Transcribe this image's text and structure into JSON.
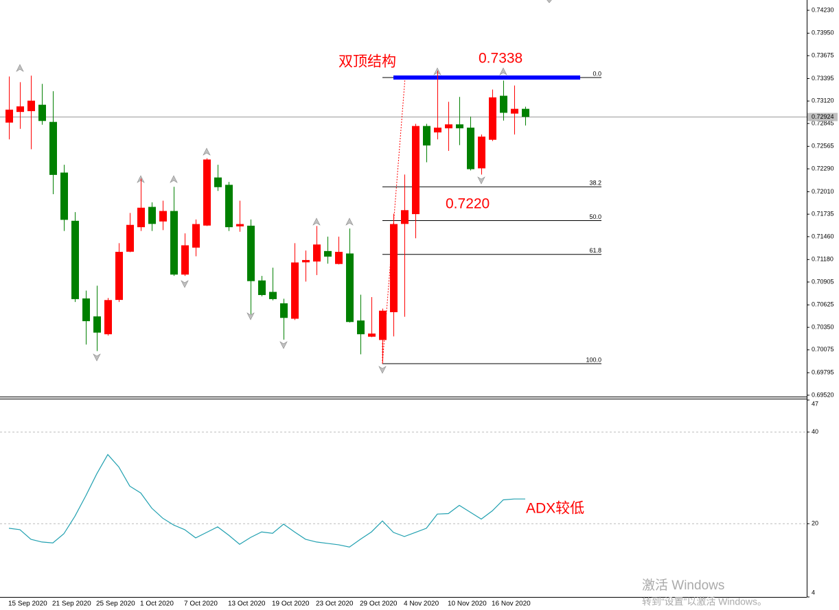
{
  "chart_data": {
    "type": "candlestick",
    "categories": [
      "15 Sep 2020",
      null,
      null,
      null,
      "21 Sep 2020",
      null,
      null,
      null,
      "25 Sep 2020",
      null,
      null,
      null,
      "1 Oct 2020",
      null,
      null,
      null,
      "7 Oct 2020",
      null,
      null,
      null,
      "13 Oct 2020",
      null,
      null,
      null,
      "19 Oct 2020",
      null,
      null,
      null,
      "23 Oct 2020",
      null,
      null,
      null,
      "29 Oct 2020",
      null,
      null,
      null,
      "4 Nov 2020",
      null,
      null,
      null,
      "10 Nov 2020",
      null,
      null,
      null,
      "16 Nov 2020",
      null,
      null,
      null
    ],
    "open": [
      0.7286,
      0.7299,
      0.73,
      0.7307,
      0.7286,
      0.7224,
      0.7165,
      0.707,
      0.7048,
      0.7027,
      0.7069,
      0.7128,
      0.7158,
      0.7182,
      0.7165,
      0.7177,
      0.71,
      0.7133,
      0.716,
      0.7218,
      0.7209,
      0.7159,
      0.7159,
      0.7092,
      0.7078,
      0.7064,
      0.7046,
      0.7115,
      0.7116,
      0.7128,
      0.7113,
      0.7125,
      0.7043,
      0.7024,
      0.702,
      0.7054,
      0.7162,
      0.7174,
      0.7281,
      0.7274,
      0.7279,
      0.7283,
      0.7279,
      0.723,
      0.7265,
      0.7318,
      0.7297,
      0.7302
    ],
    "high": [
      0.7342,
      0.7335,
      0.7343,
      0.7333,
      0.7324,
      0.7234,
      0.7176,
      0.708,
      0.7086,
      0.7071,
      0.7138,
      0.7175,
      0.7217,
      0.7188,
      0.719,
      0.7207,
      0.715,
      0.7167,
      0.7242,
      0.7234,
      0.7213,
      0.719,
      0.7167,
      0.7098,
      0.7108,
      0.707,
      0.7138,
      0.7129,
      0.7159,
      0.7146,
      0.7146,
      0.7156,
      0.7075,
      0.7072,
      0.7058,
      0.7174,
      0.7222,
      0.7284,
      0.7284,
      0.7349,
      0.7311,
      0.7317,
      0.7293,
      0.7271,
      0.7326,
      0.7337,
      0.7331,
      0.7305
    ],
    "low": [
      0.7265,
      0.7278,
      0.7253,
      0.7283,
      0.7198,
      0.7153,
      0.7066,
      0.7014,
      0.7006,
      0.7025,
      0.7066,
      0.7127,
      0.7153,
      0.7153,
      0.7154,
      0.7098,
      0.7098,
      0.7122,
      0.7159,
      0.7202,
      0.7153,
      0.7152,
      0.7051,
      0.7073,
      0.7068,
      0.702,
      0.7044,
      0.7091,
      0.7099,
      0.7113,
      0.7112,
      0.7041,
      0.7002,
      0.7023,
      0.6992,
      0.7024,
      0.7048,
      0.7144,
      0.7237,
      0.7265,
      0.7251,
      0.7258,
      0.7227,
      0.7222,
      0.7263,
      0.7288,
      0.7271,
      0.7282
    ],
    "close": [
      0.7301,
      0.7305,
      0.7312,
      0.7288,
      0.7222,
      0.7167,
      0.707,
      0.7043,
      0.7029,
      0.7068,
      0.7127,
      0.716,
      0.7181,
      0.7162,
      0.7177,
      0.71,
      0.7135,
      0.7161,
      0.724,
      0.7207,
      0.7158,
      0.7161,
      0.7092,
      0.7075,
      0.707,
      0.7047,
      0.7114,
      0.7117,
      0.7136,
      0.7122,
      0.7127,
      0.7042,
      0.7027,
      0.7027,
      0.7055,
      0.7161,
      0.7178,
      0.7281,
      0.7258,
      0.7279,
      0.7283,
      0.7279,
      0.7229,
      0.7268,
      0.7316,
      0.7298,
      0.7302,
      0.7293
    ],
    "up_color": "#ff0000",
    "down_color": "#008000",
    "ylim": [
      0.69486,
      0.74356
    ],
    "yticks": [
      {
        "value": 0.7423,
        "label": "0.74230"
      },
      {
        "value": 0.7395,
        "label": "0.73950"
      },
      {
        "value": 0.73675,
        "label": "0.73675"
      },
      {
        "value": 0.73395,
        "label": "0.73395"
      },
      {
        "value": 0.7312,
        "label": "0.73120"
      },
      {
        "value": 0.72845,
        "label": "0.72845"
      },
      {
        "value": 0.72565,
        "label": "0.72565"
      },
      {
        "value": 0.7229,
        "label": "0.72290"
      },
      {
        "value": 0.7201,
        "label": "0.72010"
      },
      {
        "value": 0.71735,
        "label": "0.71735"
      },
      {
        "value": 0.7146,
        "label": "0.71460"
      },
      {
        "value": 0.7118,
        "label": "0.71180"
      },
      {
        "value": 0.70905,
        "label": "0.70905"
      },
      {
        "value": 0.70625,
        "label": "0.70625"
      },
      {
        "value": 0.7035,
        "label": "0.70350"
      },
      {
        "value": 0.70075,
        "label": "0.70075"
      },
      {
        "value": 0.69795,
        "label": "0.69795"
      },
      {
        "value": 0.6952,
        "label": "0.69520"
      }
    ],
    "current_price": {
      "value": 0.72924,
      "label": "0.72924"
    },
    "fibonacci": {
      "high": 0.73407,
      "low": 0.69906,
      "color": "#000000",
      "levels": [
        {
          "value": 0,
          "label": "0.0"
        },
        {
          "value": 38.2,
          "label": "38.2"
        },
        {
          "value": 50,
          "label": "50.0"
        },
        {
          "value": 61.8,
          "label": "61.8"
        },
        {
          "value": 100,
          "label": "100.0"
        }
      ]
    },
    "resistance_color": "#0000ff",
    "annotations": [
      "双顶结构",
      "0.7338",
      "0.7220",
      "ADX较低"
    ],
    "adx": {
      "name": "ADX",
      "color": "#20a0b0",
      "values": [
        19.0,
        18.7,
        16.6,
        16.0,
        15.8,
        17.8,
        21.6,
        26.1,
        30.9,
        35.1,
        32.4,
        28.2,
        26.7,
        23.4,
        21.2,
        19.7,
        18.7,
        16.9,
        18.1,
        19.3,
        17.5,
        15.5,
        17.0,
        18.2,
        17.9,
        19.9,
        18.2,
        16.6,
        16.0,
        15.7,
        15.4,
        14.9,
        16.6,
        18.2,
        20.6,
        18.1,
        17.2,
        18.1,
        19.0,
        22.1,
        22.2,
        24.0,
        22.5,
        21.0,
        22.8,
        25.2,
        25.4,
        25.4
      ],
      "ylim": [
        4,
        47
      ],
      "yticks": [
        47,
        40,
        20,
        4
      ]
    },
    "watermark": [
      "激活 Windows",
      "转到“设置”以激活 Windows。"
    ]
  }
}
